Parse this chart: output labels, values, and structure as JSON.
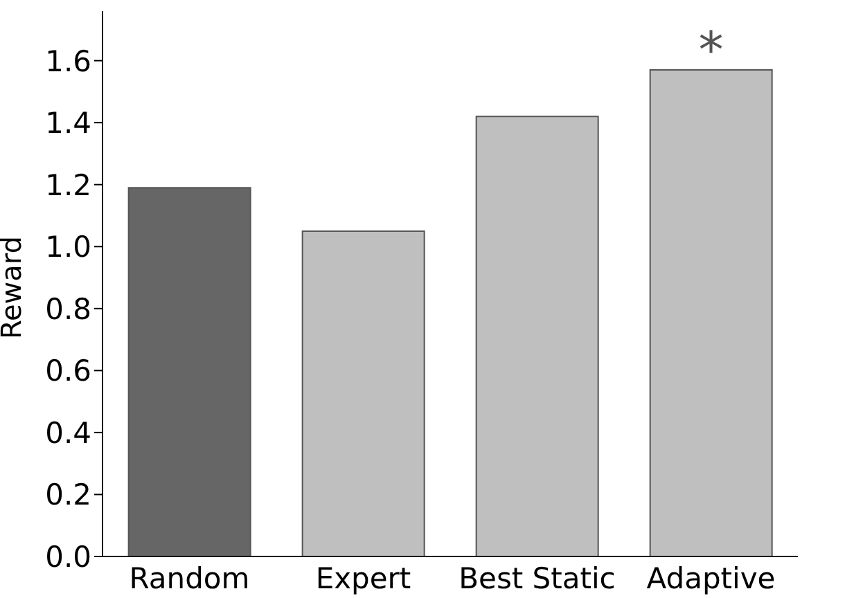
{
  "chart_data": {
    "type": "bar",
    "ylabel": "Reward",
    "categories": [
      "Random",
      "Expert",
      "Best Static",
      "Adaptive"
    ],
    "values": [
      1.19,
      1.05,
      1.42,
      1.57
    ],
    "colors": [
      "#666666",
      "#bfbfbf",
      "#bfbfbf",
      "#bfbfbf"
    ],
    "ylim": [
      0,
      1.76
    ],
    "yticks": [
      {
        "value": 0,
        "label": "0.0"
      },
      0.2,
      0.4,
      0.6,
      0.8,
      {
        "value": 1,
        "label": "1.0"
      },
      1.2,
      1.4,
      1.6
    ],
    "annotations": [
      {
        "text": "*",
        "x": "Adaptive",
        "y": 1.57
      }
    ],
    "grid": false,
    "legend": false
  }
}
